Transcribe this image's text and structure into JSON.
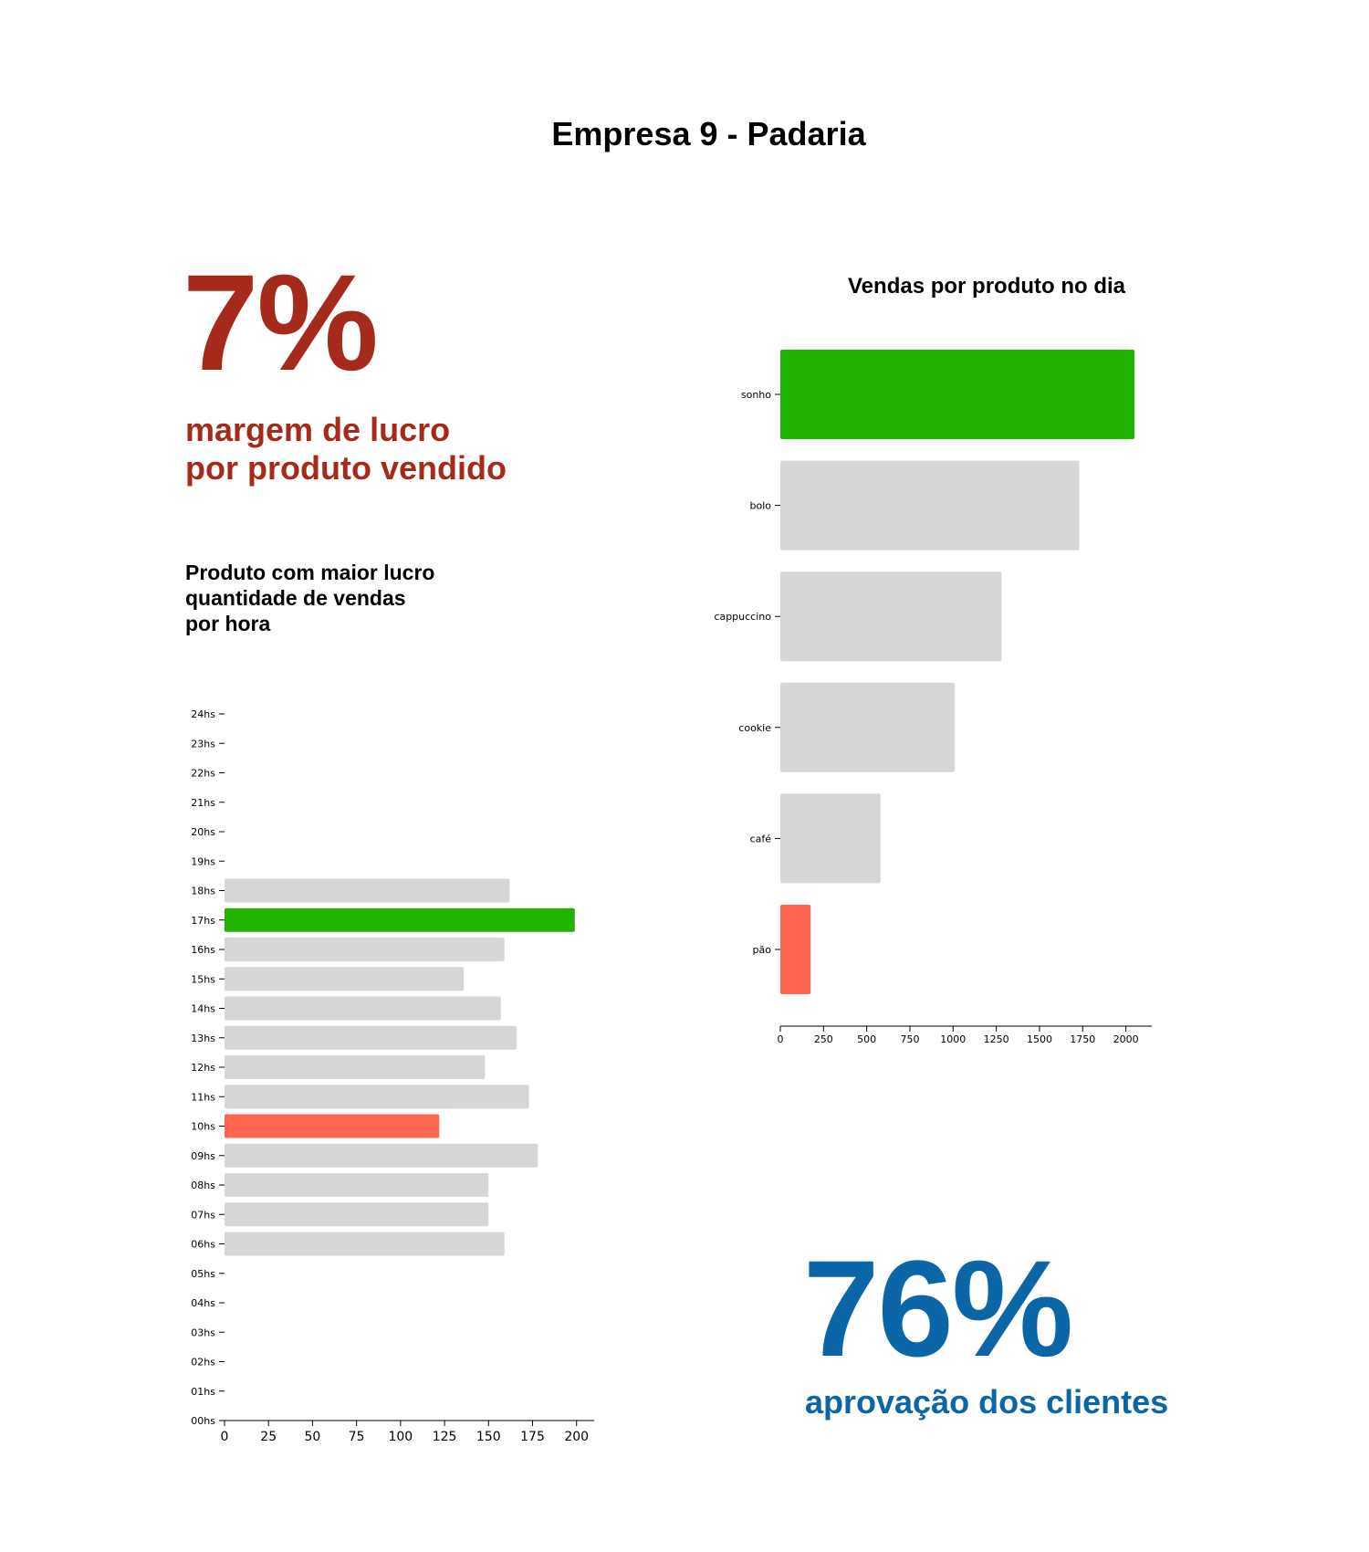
{
  "header": {
    "title": "Empresa 9 - Padaria"
  },
  "kpi_margin": {
    "value": "7%",
    "line1": "margem de lucro",
    "line2": "por produto vendido",
    "color": "#a52a1a"
  },
  "kpi_approval": {
    "value": "76%",
    "label": "aprovação dos clientes",
    "color": "#0b66a8"
  },
  "hourly_section": {
    "line1": "Produto com maior lucro",
    "line2": "quantidade de vendas",
    "line3": "por hora"
  },
  "product_section": {
    "title": "Vendas por produto no dia"
  },
  "colors": {
    "highlight_max": "#22b200",
    "highlight_min": "#ff6650",
    "default_bar": "#d6d6d6"
  },
  "chart_data": [
    {
      "type": "bar",
      "orientation": "horizontal",
      "title": "",
      "categories": [
        "00hs",
        "01hs",
        "02hs",
        "03hs",
        "04hs",
        "05hs",
        "06hs",
        "07hs",
        "08hs",
        "09hs",
        "10hs",
        "11hs",
        "12hs",
        "13hs",
        "14hs",
        "15hs",
        "16hs",
        "17hs",
        "18hs",
        "19hs",
        "20hs",
        "21hs",
        "22hs",
        "23hs",
        "24hs"
      ],
      "values": [
        0,
        0,
        0,
        0,
        0,
        0,
        159,
        150,
        150,
        178,
        122,
        173,
        148,
        166,
        157,
        136,
        159,
        199,
        162,
        0,
        0,
        0,
        0,
        0,
        0
      ],
      "highlight": {
        "17hs": "max",
        "10hs": "min"
      },
      "xlim": [
        0,
        210
      ],
      "xticks": [
        0,
        25,
        50,
        75,
        100,
        125,
        150,
        175,
        200
      ],
      "grid": false
    },
    {
      "type": "bar",
      "orientation": "horizontal",
      "title": "Vendas por produto no dia",
      "categories": [
        "sonho",
        "bolo",
        "cappuccino",
        "cookie",
        "café",
        "pão"
      ],
      "values": [
        2050,
        1730,
        1280,
        1010,
        580,
        175
      ],
      "highlight": {
        "sonho": "max",
        "pão": "min"
      },
      "xlim": [
        0,
        2150
      ],
      "xticks": [
        0,
        250,
        500,
        750,
        1000,
        1250,
        1500,
        1750,
        2000
      ],
      "grid": false
    }
  ]
}
